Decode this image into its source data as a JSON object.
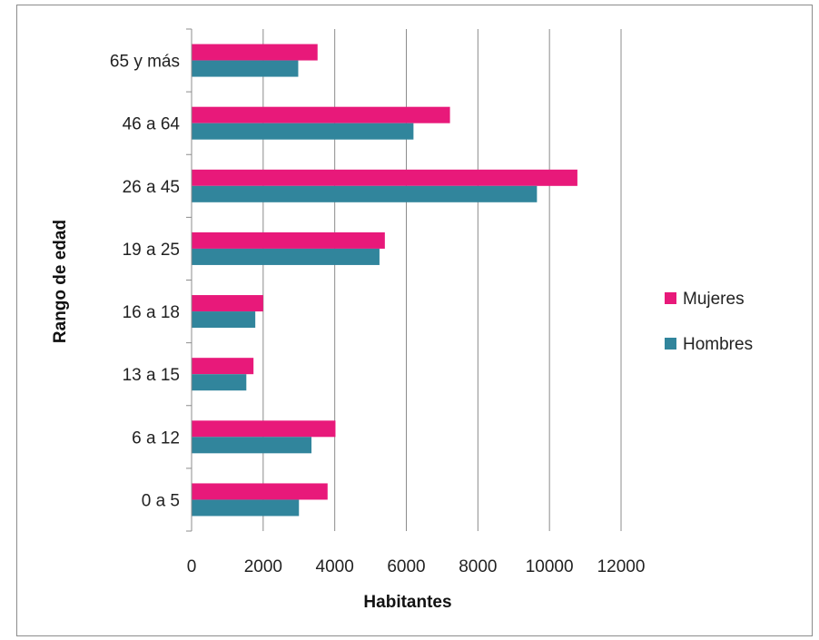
{
  "chart_data": {
    "type": "bar",
    "orientation": "horizontal",
    "categories": [
      "0 a 5",
      "6 a 12",
      "13 a 15",
      "16 a 18",
      "19 a 25",
      "26 a 45",
      "46 a 64",
      "65 y más"
    ],
    "series": [
      {
        "name": "Hombres",
        "color": "#31859c",
        "values": [
          3000,
          3350,
          1530,
          1780,
          5250,
          9650,
          6200,
          2980
        ]
      },
      {
        "name": "Mujeres",
        "color": "#e8197a",
        "values": [
          3800,
          4020,
          1730,
          2000,
          5400,
          10780,
          7220,
          3520
        ]
      }
    ],
    "xlabel": "Habitantes",
    "ylabel": "Rango de edad",
    "xlim": [
      0,
      12000
    ],
    "xticks": [
      0,
      2000,
      4000,
      6000,
      8000,
      10000,
      12000
    ],
    "grid": true,
    "legend": {
      "placement": "right",
      "entries": [
        "Mujeres",
        "Hombres"
      ]
    }
  }
}
